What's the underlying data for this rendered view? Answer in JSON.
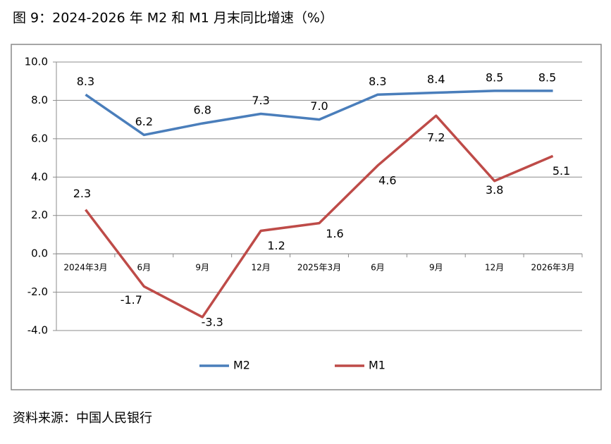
{
  "chart_data": {
    "type": "line",
    "title": "图 9：2024-2026 年 M2 和 M1 月末同比增速（%）",
    "source": "资料来源：中国人民银行",
    "categories": [
      "2024年3月",
      "6月",
      "9月",
      "12月",
      "2025年3月",
      "6月",
      "9月",
      "12月",
      "2026年3月"
    ],
    "series": [
      {
        "name": "M2",
        "color": "#4a7ebb",
        "values": [
          8.3,
          6.2,
          6.8,
          7.3,
          7.0,
          8.3,
          8.4,
          8.5,
          8.5
        ],
        "value_labels": [
          "8.3",
          "6.2",
          "6.8",
          "7.3",
          "7.0",
          "8.3",
          "8.4",
          "8.5",
          "8.5"
        ]
      },
      {
        "name": "M1",
        "color": "#be4b48",
        "values": [
          2.3,
          -1.7,
          -3.3,
          1.2,
          1.6,
          4.6,
          7.2,
          3.8,
          5.1
        ],
        "value_labels": [
          "2.3",
          "-1.7",
          "-3.3",
          "1.2",
          "1.6",
          "4.6",
          "7.2",
          "3.8",
          "5.1"
        ]
      }
    ],
    "ylim": [
      -4,
      10
    ],
    "yticks": [
      {
        "value": -4,
        "label": "-4.0"
      },
      {
        "value": -2,
        "label": "-2.0"
      },
      {
        "value": 0,
        "label": "0.0"
      },
      {
        "value": 2,
        "label": "2.0"
      },
      {
        "value": 4,
        "label": "4.0"
      },
      {
        "value": 6,
        "label": "6.0"
      },
      {
        "value": 8,
        "label": "8.0"
      },
      {
        "value": 10,
        "label": "10.0"
      }
    ],
    "grid": true,
    "legend": "bottom"
  }
}
